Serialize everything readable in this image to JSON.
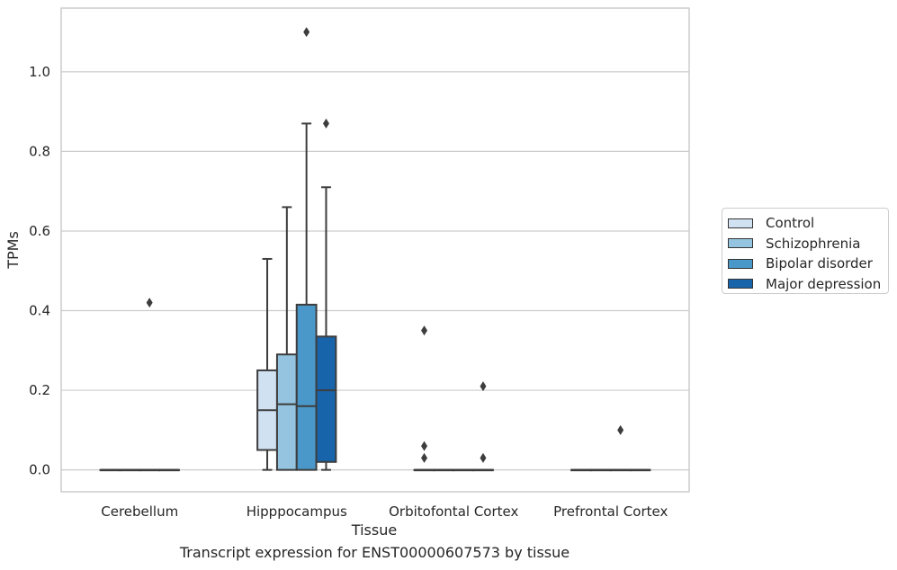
{
  "chart_data": {
    "type": "box",
    "xlabel": "Tissue",
    "ylabel": "TPMs",
    "caption": "Transcript expression for ENST00000607573 by tissue",
    "ylim": [
      -0.055,
      1.16
    ],
    "yticks": [
      0.0,
      0.2,
      0.4,
      0.6,
      0.8,
      1.0
    ],
    "ytick_labels": [
      "0.0",
      "0.2",
      "0.4",
      "0.6",
      "0.8",
      "1.0"
    ],
    "grid": true,
    "legend_position": "right",
    "categories": [
      "Cerebellum",
      "Hipppocampus",
      "Orbitofontal Cortex",
      "Prefrontal Cortex"
    ],
    "series": [
      {
        "name": "Control",
        "color": "#d0e1f2",
        "boxes": [
          {
            "q1": 0,
            "median": 0,
            "q3": 0,
            "whisker_low": 0,
            "whisker_high": 0,
            "outliers": []
          },
          {
            "q1": 0.05,
            "median": 0.15,
            "q3": 0.25,
            "whisker_low": 0,
            "whisker_high": 0.53,
            "outliers": []
          },
          {
            "q1": 0,
            "median": 0,
            "q3": 0,
            "whisker_low": 0,
            "whisker_high": 0,
            "outliers": [
              0.35,
              0.06,
              0.03
            ]
          },
          {
            "q1": 0,
            "median": 0,
            "q3": 0,
            "whisker_low": 0,
            "whisker_high": 0,
            "outliers": []
          }
        ]
      },
      {
        "name": "Schizophrenia",
        "color": "#94c4df",
        "boxes": [
          {
            "q1": 0,
            "median": 0,
            "q3": 0,
            "whisker_low": 0,
            "whisker_high": 0,
            "outliers": []
          },
          {
            "q1": 0,
            "median": 0.165,
            "q3": 0.29,
            "whisker_low": 0,
            "whisker_high": 0.66,
            "outliers": []
          },
          {
            "q1": 0,
            "median": 0,
            "q3": 0,
            "whisker_low": 0,
            "whisker_high": 0,
            "outliers": []
          },
          {
            "q1": 0,
            "median": 0,
            "q3": 0,
            "whisker_low": 0,
            "whisker_high": 0,
            "outliers": []
          }
        ]
      },
      {
        "name": "Bipolar disorder",
        "color": "#4a98c9",
        "boxes": [
          {
            "q1": 0,
            "median": 0,
            "q3": 0,
            "whisker_low": 0,
            "whisker_high": 0,
            "outliers": [
              0.42
            ]
          },
          {
            "q1": 0,
            "median": 0.16,
            "q3": 0.415,
            "whisker_low": 0,
            "whisker_high": 0.87,
            "outliers": [
              1.1
            ]
          },
          {
            "q1": 0,
            "median": 0,
            "q3": 0,
            "whisker_low": 0,
            "whisker_high": 0,
            "outliers": []
          },
          {
            "q1": 0,
            "median": 0,
            "q3": 0,
            "whisker_low": 0,
            "whisker_high": 0,
            "outliers": [
              0.1
            ]
          }
        ]
      },
      {
        "name": "Major depression",
        "color": "#1764ab",
        "boxes": [
          {
            "q1": 0,
            "median": 0,
            "q3": 0,
            "whisker_low": 0,
            "whisker_high": 0,
            "outliers": []
          },
          {
            "q1": 0.02,
            "median": 0.2,
            "q3": 0.335,
            "whisker_low": 0,
            "whisker_high": 0.71,
            "outliers": [
              0.87
            ]
          },
          {
            "q1": 0,
            "median": 0,
            "q3": 0,
            "whisker_low": 0,
            "whisker_high": 0,
            "outliers": [
              0.21,
              0.03
            ]
          },
          {
            "q1": 0,
            "median": 0,
            "q3": 0,
            "whisker_low": 0,
            "whisker_high": 0,
            "outliers": []
          }
        ]
      }
    ]
  }
}
